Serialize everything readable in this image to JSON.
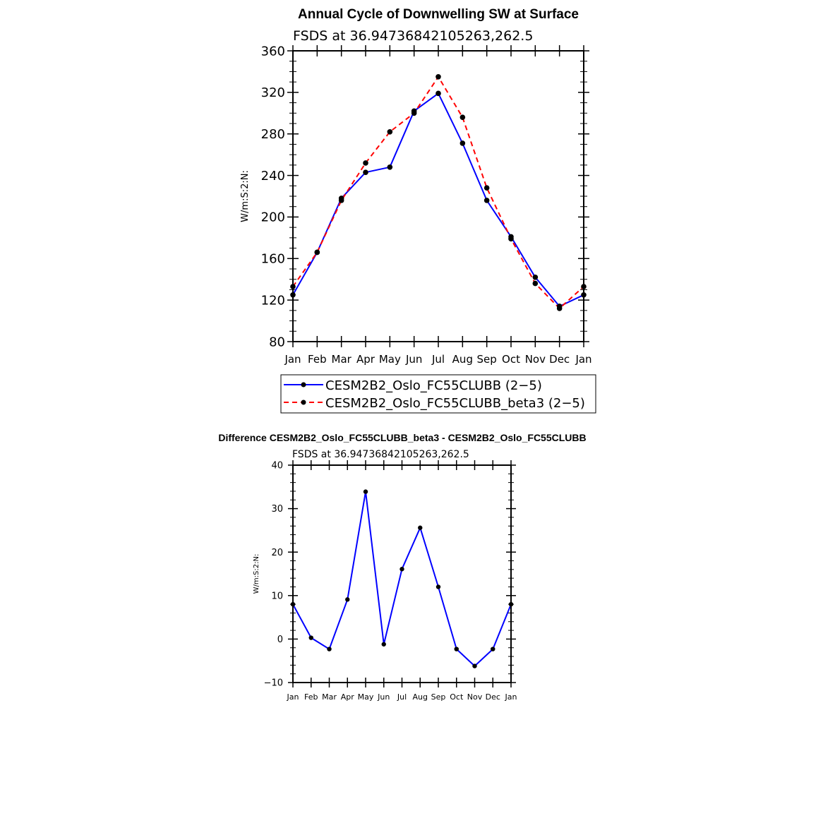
{
  "chart_data": [
    {
      "type": "line",
      "title": "Annual Cycle of Downwelling SW at Surface",
      "subtitle": "FSDS at 36.94736842105263,262.5",
      "ylabel": "W/m:S:2:N:",
      "xlabel": "",
      "ylim": [
        80,
        360
      ],
      "yticks": [
        "80",
        "120",
        "160",
        "200",
        "240",
        "280",
        "320",
        "360"
      ],
      "categories": [
        "Jan",
        "Feb",
        "Mar",
        "Apr",
        "May",
        "Jun",
        "Jul",
        "Aug",
        "Sep",
        "Oct",
        "Nov",
        "Dec",
        "Jan"
      ],
      "series": [
        {
          "name": "CESM2B2_Oslo_FC55CLUBB (2−5)",
          "color": "#0000ff",
          "dash": "solid",
          "values": [
            125,
            166,
            218,
            243,
            248,
            302,
            319,
            271,
            216,
            181,
            142,
            114,
            125
          ]
        },
        {
          "name": "CESM2B2_Oslo_FC55CLUBB_beta3 (2−5)",
          "color": "#ff0000",
          "dash": "dashed",
          "values": [
            133,
            166,
            216,
            252,
            282,
            300,
            335,
            296,
            228,
            179,
            136,
            112,
            133
          ]
        }
      ]
    },
    {
      "type": "line",
      "title": "Difference CESM2B2_Oslo_FC55CLUBB_beta3 - CESM2B2_Oslo_FC55CLUBB",
      "subtitle": "FSDS at 36.94736842105263,262.5",
      "ylabel": "W/m:S:2:N:",
      "xlabel": "",
      "ylim": [
        -10,
        40
      ],
      "yticks": [
        "−10",
        "0",
        "10",
        "20",
        "30",
        "40"
      ],
      "categories": [
        "Jan",
        "Feb",
        "Mar",
        "Apr",
        "May",
        "Jun",
        "Jul",
        "Aug",
        "Sep",
        "Oct",
        "Nov",
        "Dec",
        "Jan"
      ],
      "series": [
        {
          "name": "Difference",
          "color": "#0000ff",
          "dash": "solid",
          "values": [
            8.0,
            0.3,
            -2.3,
            9.1,
            33.9,
            -1.2,
            16.1,
            25.6,
            12.0,
            -2.3,
            -6.2,
            -2.3,
            8.0
          ]
        }
      ]
    }
  ]
}
